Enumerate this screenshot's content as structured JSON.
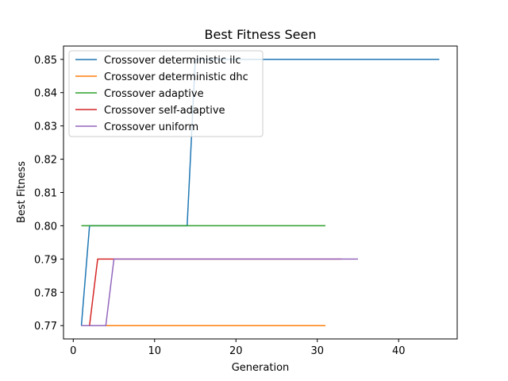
{
  "chart_data": {
    "type": "line",
    "title": "Best Fitness Seen",
    "xlabel": "Generation",
    "ylabel": "Best Fitness",
    "xlim": [
      -1.2,
      47.2
    ],
    "ylim": [
      0.766,
      0.854
    ],
    "xticks": [
      0,
      10,
      20,
      30,
      40
    ],
    "yticks": [
      0.77,
      0.78,
      0.79,
      0.8,
      0.81,
      0.82,
      0.83,
      0.84,
      0.85
    ],
    "grid": false,
    "legend_position": "upper-left",
    "series": [
      {
        "name": "Crossover deterministic ilc",
        "color": "#1f77b4",
        "points": [
          [
            1,
            0.77
          ],
          [
            2,
            0.8
          ],
          [
            14,
            0.8
          ],
          [
            15,
            0.85
          ],
          [
            45,
            0.85
          ]
        ]
      },
      {
        "name": "Crossover deterministic dhc",
        "color": "#ff7f0e",
        "points": [
          [
            1,
            0.77
          ],
          [
            31,
            0.77
          ]
        ]
      },
      {
        "name": "Crossover adaptive",
        "color": "#2ca02c",
        "points": [
          [
            1,
            0.8
          ],
          [
            31,
            0.8
          ]
        ]
      },
      {
        "name": "Crossover self-adaptive",
        "color": "#d62728",
        "points": [
          [
            1,
            0.77
          ],
          [
            2,
            0.77
          ],
          [
            3,
            0.79
          ],
          [
            33,
            0.79
          ]
        ]
      },
      {
        "name": "Crossover uniform",
        "color": "#9467bd",
        "points": [
          [
            1,
            0.77
          ],
          [
            4,
            0.77
          ],
          [
            5,
            0.79
          ],
          [
            35,
            0.79
          ]
        ]
      }
    ]
  }
}
